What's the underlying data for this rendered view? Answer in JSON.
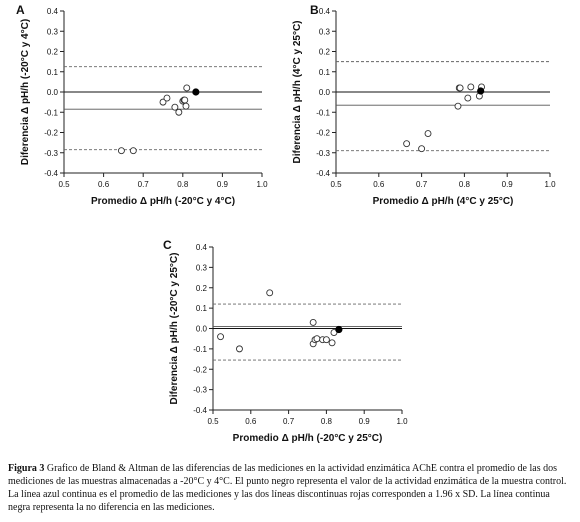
{
  "chart_data": [
    {
      "type": "scatter",
      "panel": "A",
      "xlabel": "Promedio Δ pH/h (-20°C y 4°C)",
      "ylabel": "Diferencia Δ pH/h (-20°C y 4°C)",
      "xlim": [
        0.5,
        1.0
      ],
      "ylim": [
        -0.4,
        0.4
      ],
      "xticks": [
        "0.5",
        "0.6",
        "0.7",
        "0.8",
        "0.9",
        "1.0"
      ],
      "yticks": [
        "-0.4",
        "-0.3",
        "-0.2",
        "-0.1",
        "0.0",
        "0.1",
        "0.2",
        "0.3",
        "0.4"
      ],
      "points": [
        {
          "x": 0.645,
          "y": -0.29
        },
        {
          "x": 0.675,
          "y": -0.29
        },
        {
          "x": 0.75,
          "y": -0.05
        },
        {
          "x": 0.76,
          "y": -0.03
        },
        {
          "x": 0.78,
          "y": -0.075
        },
        {
          "x": 0.79,
          "y": -0.1
        },
        {
          "x": 0.8,
          "y": -0.045
        },
        {
          "x": 0.803,
          "y": -0.04
        },
        {
          "x": 0.805,
          "y": -0.04
        },
        {
          "x": 0.808,
          "y": -0.07
        },
        {
          "x": 0.81,
          "y": 0.02
        }
      ],
      "control_point": {
        "x": 0.833,
        "y": 0.0
      },
      "zero_line": 0.0,
      "mean_line": -0.085,
      "limits": [
        0.125,
        -0.285
      ]
    },
    {
      "type": "scatter",
      "panel": "B",
      "xlabel": "Promedio Δ pH/h (4°C y 25°C)",
      "ylabel": "Diferencia Δ pH/h (4°C y 25°C)",
      "xlim": [
        0.5,
        1.0
      ],
      "ylim": [
        -0.4,
        0.4
      ],
      "xticks": [
        "0.5",
        "0.6",
        "0.7",
        "0.8",
        "0.9",
        "1.0"
      ],
      "yticks": [
        "-0.4",
        "-0.3",
        "-0.2",
        "-0.1",
        "0.0",
        "0.1",
        "0.2",
        "0.3",
        "0.4"
      ],
      "points": [
        {
          "x": 0.665,
          "y": -0.255
        },
        {
          "x": 0.7,
          "y": -0.28
        },
        {
          "x": 0.715,
          "y": -0.205
        },
        {
          "x": 0.785,
          "y": -0.07
        },
        {
          "x": 0.788,
          "y": 0.02
        },
        {
          "x": 0.79,
          "y": 0.02
        },
        {
          "x": 0.808,
          "y": -0.03
        },
        {
          "x": 0.815,
          "y": 0.025
        },
        {
          "x": 0.835,
          "y": -0.02
        },
        {
          "x": 0.84,
          "y": 0.025
        }
      ],
      "control_point": {
        "x": 0.838,
        "y": 0.005
      },
      "zero_line": 0.0,
      "mean_line": -0.065,
      "limits": [
        0.15,
        -0.29
      ]
    },
    {
      "type": "scatter",
      "panel": "C",
      "xlabel": "Promedio Δ pH/h (-20°C y 25°C)",
      "ylabel": "Diferencia Δ pH/h (-20°C y 25°C)",
      "xlim": [
        0.5,
        1.0
      ],
      "ylim": [
        -0.4,
        0.4
      ],
      "xticks": [
        "0.5",
        "0.6",
        "0.7",
        "0.8",
        "0.9",
        "1.0"
      ],
      "yticks": [
        "-0.4",
        "-0.3",
        "-0.2",
        "-0.1",
        "0.0",
        "0.1",
        "0.2",
        "0.3",
        "0.4"
      ],
      "points": [
        {
          "x": 0.52,
          "y": -0.04
        },
        {
          "x": 0.57,
          "y": -0.1
        },
        {
          "x": 0.65,
          "y": 0.175
        },
        {
          "x": 0.765,
          "y": 0.03
        },
        {
          "x": 0.765,
          "y": -0.075
        },
        {
          "x": 0.77,
          "y": -0.055
        },
        {
          "x": 0.775,
          "y": -0.05
        },
        {
          "x": 0.79,
          "y": -0.055
        },
        {
          "x": 0.8,
          "y": -0.055
        },
        {
          "x": 0.815,
          "y": -0.07
        },
        {
          "x": 0.82,
          "y": -0.02
        }
      ],
      "control_point": {
        "x": 0.833,
        "y": -0.005
      },
      "zero_line": 0.0,
      "mean_line": 0.01,
      "limits": [
        0.12,
        -0.155
      ]
    }
  ],
  "caption": {
    "label": "Figura 3",
    "text": " Grafico de Bland & Altman de las diferencias de las mediciones en la actividad enzimática AChE contra el promedio de las dos mediciones de las muestras almacenadas a -20°C y 4°C. El punto negro representa el valor de la actividad enzimática de la muestra control. La línea azul continua es el promedio de las mediciones y las dos líneas discontinuas rojas corresponden a 1.96 x SD. La línea continua negra representa la no diferencia en las mediciones."
  }
}
